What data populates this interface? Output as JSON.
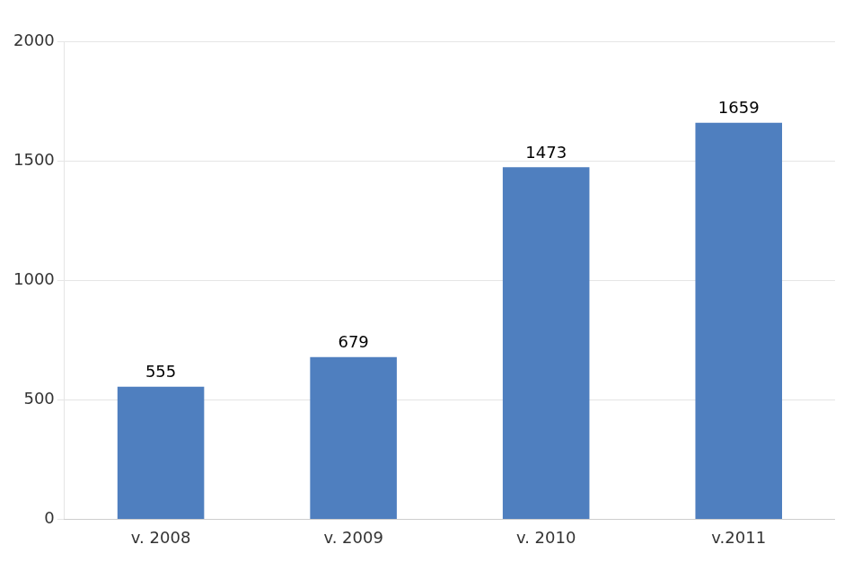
{
  "chart_data": {
    "type": "bar",
    "categories": [
      "v. 2008",
      "v. 2009",
      "v. 2010",
      "v.2011"
    ],
    "values": [
      555,
      679,
      1473,
      1659
    ],
    "color": "#4f7fbf",
    "ylim": [
      0,
      2000
    ],
    "yticks": [
      0,
      500,
      1000,
      1500,
      2000
    ],
    "grid": true,
    "data_labels": true
  }
}
